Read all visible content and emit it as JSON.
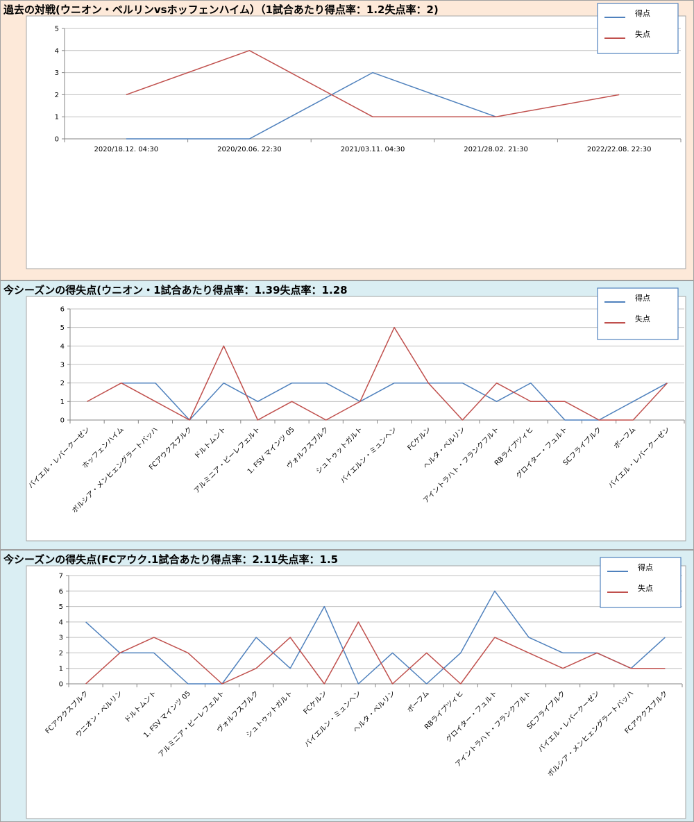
{
  "colors": {
    "score": "#4f81bd",
    "conceded": "#c0504d"
  },
  "chart_data": [
    {
      "type": "line",
      "title": "過去の対戦(ウニオン・ベルリンvsホッフェンハイム）（1試合あたり得点率：1.2失点率：2)",
      "categories": [
        "2020/18.12. 04:30",
        "2020/20.06. 22:30",
        "2021/03.11. 04:30",
        "2021/28.02. 21:30",
        "2022/22.08. 22:30"
      ],
      "ylim": [
        0,
        5
      ],
      "yticks": [
        0,
        1,
        2,
        3,
        4,
        5
      ],
      "rotate_labels": false,
      "legend_position": "top-right",
      "series": [
        {
          "name": "得点",
          "color": "#4f81bd",
          "values": [
            0,
            0,
            3,
            1,
            null
          ]
        },
        {
          "name": "失点",
          "color": "#c0504d",
          "values": [
            2,
            4,
            1,
            1,
            2
          ]
        }
      ]
    },
    {
      "type": "line",
      "title": "今シーズンの得失点(ウニオン・1試合あたり得点率：1.39失点率：1.28",
      "categories": [
        "バイエル・レバークーゼン",
        "ホッフェンハイム",
        "ボルシア・メンヒェングラートバッハ",
        "FCアウクスブルク",
        "ドルトムント",
        "アルミニア・ビーレフェルト",
        "1. FSV マインツ 05",
        "ヴォルフスブルク",
        "シュトゥットガルト",
        "バイエルン・ミュンヘン",
        "FCケルン",
        "ヘルタ・ベルリン",
        "アイントラハト・フランクフルト",
        "RBライプツィヒ",
        "グロイター・フュルト",
        "SCフライブルク",
        "ボーフム",
        "バイエル・レバークーゼン"
      ],
      "ylim": [
        0,
        6
      ],
      "yticks": [
        0,
        1,
        2,
        3,
        4,
        5,
        6
      ],
      "rotate_labels": true,
      "legend_position": "top-right",
      "series": [
        {
          "name": "得点",
          "color": "#4f81bd",
          "values": [
            null,
            2,
            2,
            0,
            2,
            1,
            2,
            2,
            1,
            2,
            2,
            2,
            1,
            2,
            0,
            0,
            1,
            2
          ]
        },
        {
          "name": "失点",
          "color": "#c0504d",
          "values": [
            1,
            2,
            1,
            0,
            4,
            0,
            1,
            0,
            1,
            5,
            2,
            0,
            2,
            1,
            1,
            0,
            0,
            2
          ]
        }
      ]
    },
    {
      "type": "line",
      "title": "今シーズンの得失点(FCアウク.1試合あたり得点率：2.11失点率：1.5",
      "categories": [
        "FCアウクスブルク",
        "ウニオン・ベルリン",
        "ドルトムント",
        "1. FSV マインツ 05",
        "アルミニア・ビーレフェルト",
        "ヴォルフスブルク",
        "シュトゥットガルト",
        "FCケルン",
        "バイエルン・ミュンヘン",
        "ヘルタ・ベルリン",
        "ボーフム",
        "RBライプツィヒ",
        "グロイター・フュルト",
        "アイントラハト・フランクフルト",
        "SCフライブルク",
        "バイエル・レバークーゼン",
        "ボルシア・メンヒェングラートバッハ",
        "FCアウクスブルク"
      ],
      "ylim": [
        0,
        7
      ],
      "yticks": [
        0,
        1,
        2,
        3,
        4,
        5,
        6,
        7
      ],
      "rotate_labels": true,
      "legend_position": "top-right",
      "series": [
        {
          "name": "得点",
          "color": "#4f81bd",
          "values": [
            4,
            2,
            2,
            0,
            0,
            3,
            1,
            5,
            0,
            2,
            0,
            2,
            6,
            3,
            2,
            2,
            1,
            3
          ]
        },
        {
          "name": "失点",
          "color": "#c0504d",
          "values": [
            0,
            2,
            3,
            2,
            0,
            1,
            3,
            0,
            4,
            0,
            2,
            0,
            3,
            2,
            1,
            2,
            1,
            1
          ]
        }
      ]
    }
  ]
}
